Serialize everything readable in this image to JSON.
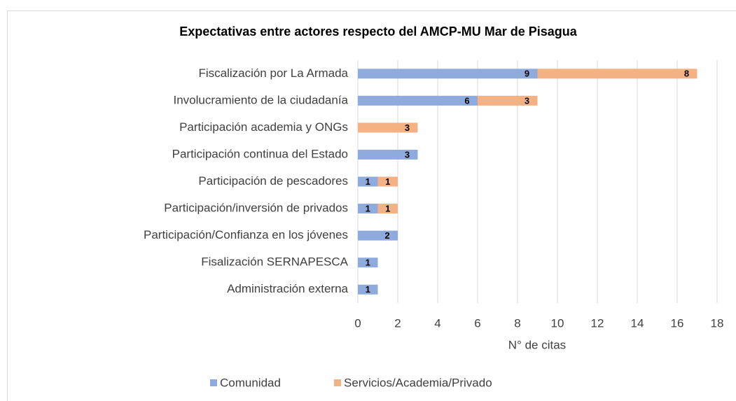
{
  "chart_data": {
    "type": "bar",
    "orientation": "horizontal",
    "stacked": true,
    "title": "Expectativas entre actores respecto del AMCP-MU Mar de Pisagua",
    "x_label": "N° de citas",
    "categories": [
      "Fiscalización por La Armada",
      "Involucramiento de la ciudadanía",
      "Participación academia y ONGs",
      "Participación continua del Estado",
      "Participación de pescadores",
      "Participación/inversión de privados",
      "Participación/Confianza en los jóvenes",
      "Fisalización SERNAPESCA",
      "Administración externa"
    ],
    "series": [
      {
        "name": "Comunidad",
        "color": "#8faadc",
        "values": [
          9,
          6,
          0,
          3,
          1,
          1,
          2,
          1,
          1
        ]
      },
      {
        "name": "Servicios/Academia/Privado",
        "color": "#f4b183",
        "values": [
          8,
          3,
          3,
          0,
          1,
          1,
          0,
          0,
          0
        ]
      }
    ],
    "xlim": [
      0,
      18
    ],
    "xticks": [
      0,
      2,
      4,
      6,
      8,
      10,
      12,
      14,
      16,
      18
    ],
    "grid": true,
    "legend": "bottom"
  }
}
